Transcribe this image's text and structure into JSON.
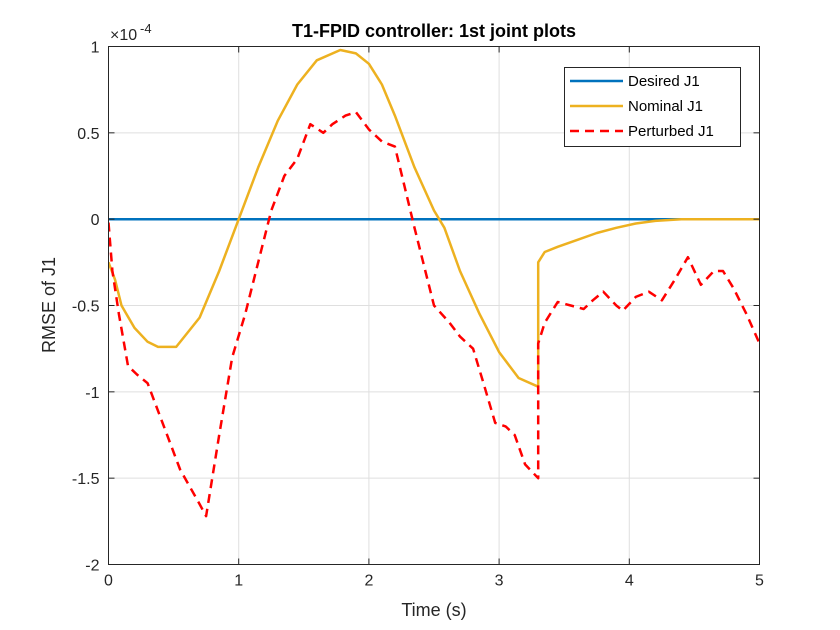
{
  "chart_data": {
    "type": "line",
    "title": "T1-FPID controller: 1st joint plots",
    "xlabel": "Time (s)",
    "ylabel": "RMSE of J1",
    "exponent_label": "×10",
    "exponent_power": "-4",
    "xlim": [
      0,
      5
    ],
    "ylim": [
      -2,
      1
    ],
    "x_ticks": [
      0,
      1,
      2,
      3,
      4,
      5
    ],
    "x_tick_labels": [
      "0",
      "1",
      "2",
      "3",
      "4",
      "5"
    ],
    "y_ticks": [
      -2,
      -1.5,
      -1,
      -0.5,
      0,
      0.5,
      1
    ],
    "y_tick_labels": [
      "-2",
      "-1.5",
      "-1",
      "-0.5",
      "0",
      "0.5",
      "1"
    ],
    "grid": true,
    "legend_position": "top-right",
    "series": [
      {
        "name": "Desired J1",
        "color": "#0072BD",
        "dash": "solid",
        "x": [
          0,
          5
        ],
        "y": [
          0,
          0
        ]
      },
      {
        "name": "Nominal J1",
        "color": "#EDB120",
        "dash": "solid",
        "x": [
          0,
          0.05,
          0.1,
          0.2,
          0.3,
          0.38,
          0.52,
          0.7,
          0.85,
          1.0,
          1.15,
          1.3,
          1.45,
          1.6,
          1.78,
          1.9,
          2.0,
          2.1,
          2.2,
          2.35,
          2.5,
          2.58,
          2.7,
          2.85,
          3.0,
          3.15,
          3.3,
          3.3,
          3.35,
          3.45,
          3.6,
          3.75,
          3.9,
          4.05,
          4.2,
          4.4,
          4.6,
          5.0
        ],
        "y": [
          -0.25,
          -0.35,
          -0.5,
          -0.63,
          -0.71,
          -0.74,
          -0.74,
          -0.57,
          -0.3,
          0.0,
          0.3,
          0.57,
          0.78,
          0.92,
          0.98,
          0.96,
          0.9,
          0.78,
          0.6,
          0.3,
          0.05,
          -0.05,
          -0.3,
          -0.55,
          -0.77,
          -0.92,
          -0.97,
          -0.25,
          -0.19,
          -0.16,
          -0.12,
          -0.08,
          -0.05,
          -0.025,
          -0.01,
          0.0,
          0.0,
          0.0
        ]
      },
      {
        "name": "Perturbed J1",
        "color": "#FF0000",
        "dash": "dashed",
        "x": [
          0,
          0.03,
          0.08,
          0.15,
          0.22,
          0.3,
          0.4,
          0.55,
          0.7,
          0.75,
          0.85,
          0.95,
          1.05,
          1.15,
          1.25,
          1.35,
          1.45,
          1.55,
          1.65,
          1.72,
          1.82,
          1.9,
          2.0,
          2.1,
          2.2,
          2.27,
          2.35,
          2.5,
          2.62,
          2.7,
          2.8,
          2.88,
          2.97,
          3.05,
          3.12,
          3.2,
          3.3,
          3.3,
          3.35,
          3.45,
          3.55,
          3.65,
          3.72,
          3.8,
          3.9,
          3.95,
          4.05,
          4.15,
          4.25,
          4.35,
          4.45,
          4.55,
          4.65,
          4.72,
          4.8,
          4.9,
          5.0
        ],
        "y": [
          -0.02,
          -0.3,
          -0.55,
          -0.85,
          -0.9,
          -0.95,
          -1.15,
          -1.45,
          -1.65,
          -1.72,
          -1.25,
          -0.8,
          -0.55,
          -0.25,
          0.05,
          0.25,
          0.35,
          0.55,
          0.5,
          0.55,
          0.6,
          0.62,
          0.52,
          0.45,
          0.42,
          0.2,
          -0.05,
          -0.5,
          -0.6,
          -0.68,
          -0.75,
          -0.95,
          -1.18,
          -1.2,
          -1.25,
          -1.42,
          -1.5,
          -0.72,
          -0.6,
          -0.48,
          -0.5,
          -0.52,
          -0.47,
          -0.42,
          -0.5,
          -0.53,
          -0.45,
          -0.42,
          -0.47,
          -0.35,
          -0.22,
          -0.38,
          -0.3,
          -0.3,
          -0.4,
          -0.55,
          -0.72
        ]
      }
    ]
  }
}
